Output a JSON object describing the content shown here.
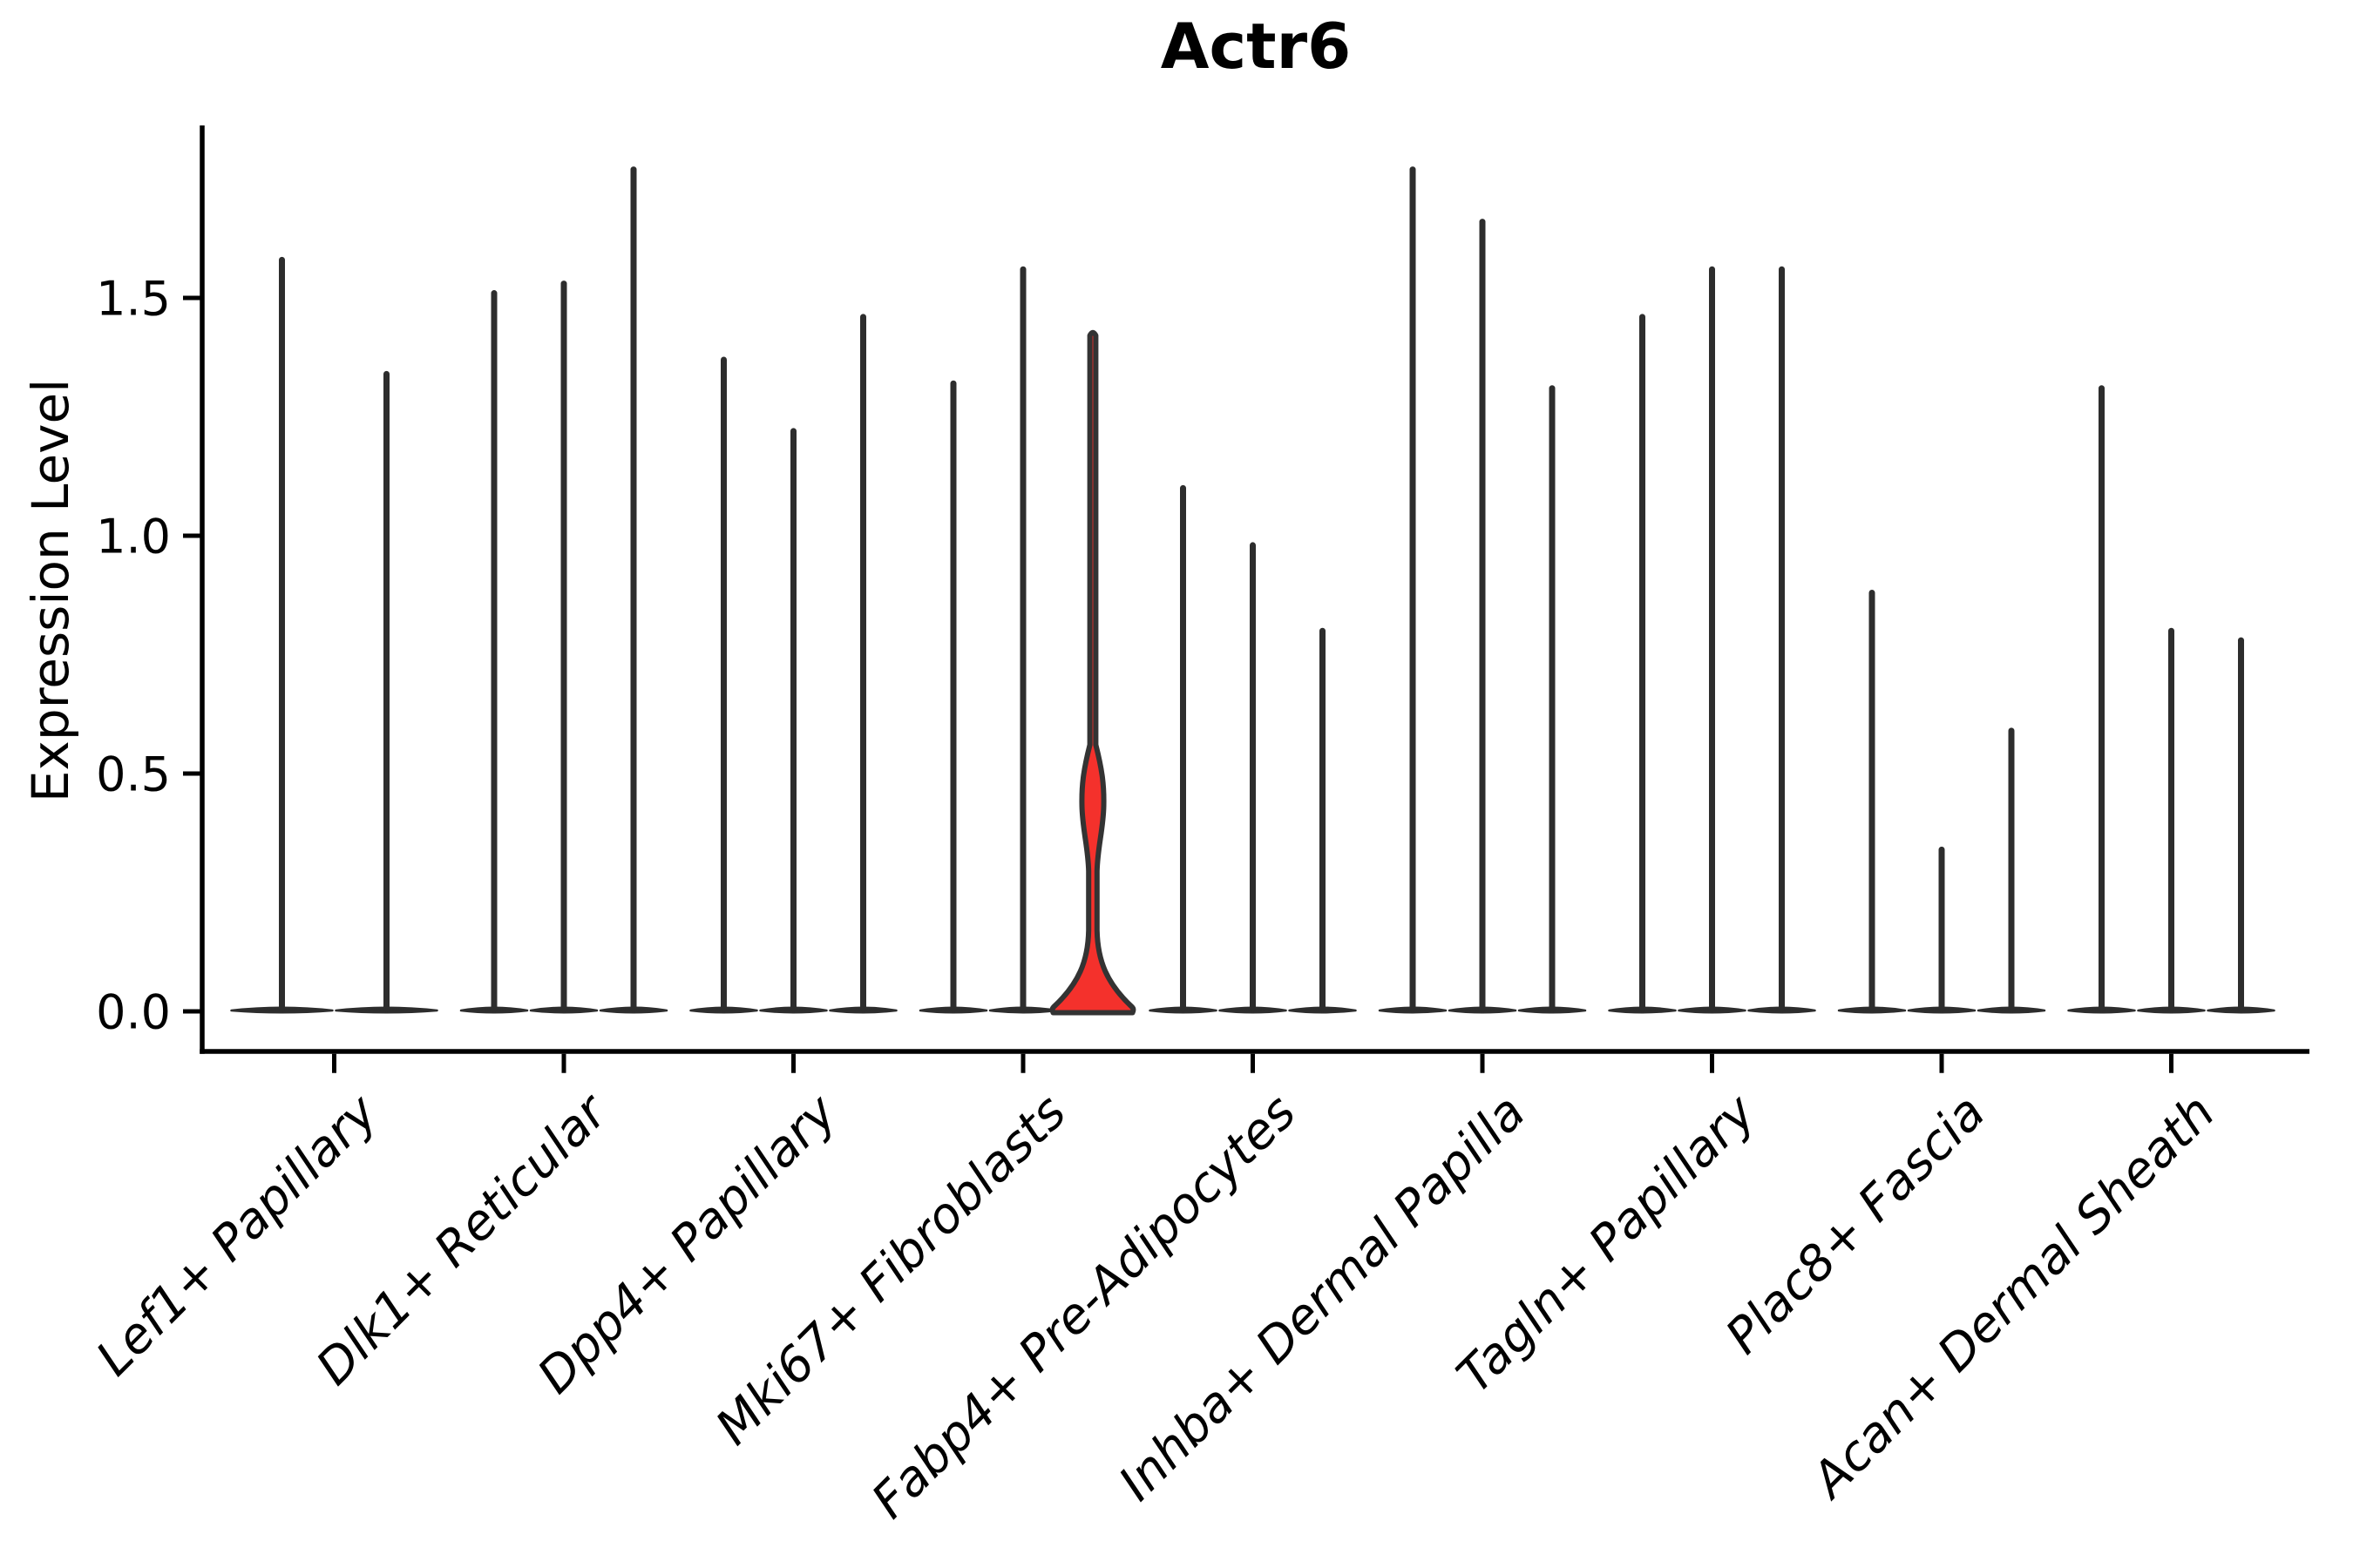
{
  "chart_data": {
    "type": "violin",
    "title": "Actr6",
    "ylabel": "Expression Level",
    "xlabel": "",
    "y_ticks": [
      "0.0",
      "0.5",
      "1.0",
      "1.5"
    ],
    "y_tick_values": [
      0.0,
      0.5,
      1.0,
      1.5
    ],
    "ylim": [
      -0.09,
      1.86
    ],
    "grid": false,
    "legend": "none",
    "categories": [
      "Lef1+ Papillary",
      "Dlk1+ Reticular",
      "Dpp4+ Papillary",
      "Mki67+ Fibroblasts",
      "Fabp4+ Pre-Adipocytes",
      "Inhba+ Dermal Papilla",
      "Tagln+ Papillary",
      "Plac8+ Fascia",
      "Acan+ Dermal Sheath"
    ],
    "groups": [
      {
        "label": "Lef1+ Papillary",
        "violins": [
          {
            "max": 1.58
          },
          {
            "max": 1.34
          }
        ]
      },
      {
        "label": "Dlk1+ Reticular",
        "violins": [
          {
            "max": 1.51
          },
          {
            "max": 1.53
          },
          {
            "max": 1.77
          }
        ]
      },
      {
        "label": "Dpp4+ Papillary",
        "violins": [
          {
            "max": 1.37
          },
          {
            "max": 1.22
          },
          {
            "max": 1.46
          }
        ]
      },
      {
        "label": "Mki67+ Fibroblasts",
        "violins": [
          {
            "max": 1.32
          },
          {
            "max": 1.56
          },
          {
            "max": 1.43,
            "highlighted": true
          }
        ]
      },
      {
        "label": "Fabp4+ Pre-Adipocytes",
        "violins": [
          {
            "max": 1.1
          },
          {
            "max": 0.98
          },
          {
            "max": 0.8
          }
        ]
      },
      {
        "label": "Inhba+ Dermal Papilla",
        "violins": [
          {
            "max": 1.77
          },
          {
            "max": 1.66
          },
          {
            "max": 1.31
          }
        ]
      },
      {
        "label": "Tagln+ Papillary",
        "violins": [
          {
            "max": 1.46
          },
          {
            "max": 1.56
          },
          {
            "max": 1.56
          }
        ]
      },
      {
        "label": "Plac8+ Fascia",
        "violins": [
          {
            "max": 0.88
          },
          {
            "max": 0.34
          },
          {
            "max": 0.59
          }
        ]
      },
      {
        "label": "Acan+ Dermal Sheath",
        "violins": [
          {
            "max": 1.31
          },
          {
            "max": 0.8
          },
          {
            "max": 0.78
          }
        ]
      }
    ],
    "highlight": {
      "category": "Mki67+ Fibroblasts",
      "violin_index": 2,
      "max": 1.43,
      "base_bulge_top": 0.14,
      "spindle_range": [
        0.29,
        0.56
      ],
      "spindle_peak": 0.43
    },
    "colors": {
      "background": "#ffffff",
      "violin_stroke": "#2d2d2d",
      "highlight_fill": "#f4312c",
      "highlight_stroke": "#333333",
      "axis": "#000000",
      "text": "#000000"
    }
  }
}
